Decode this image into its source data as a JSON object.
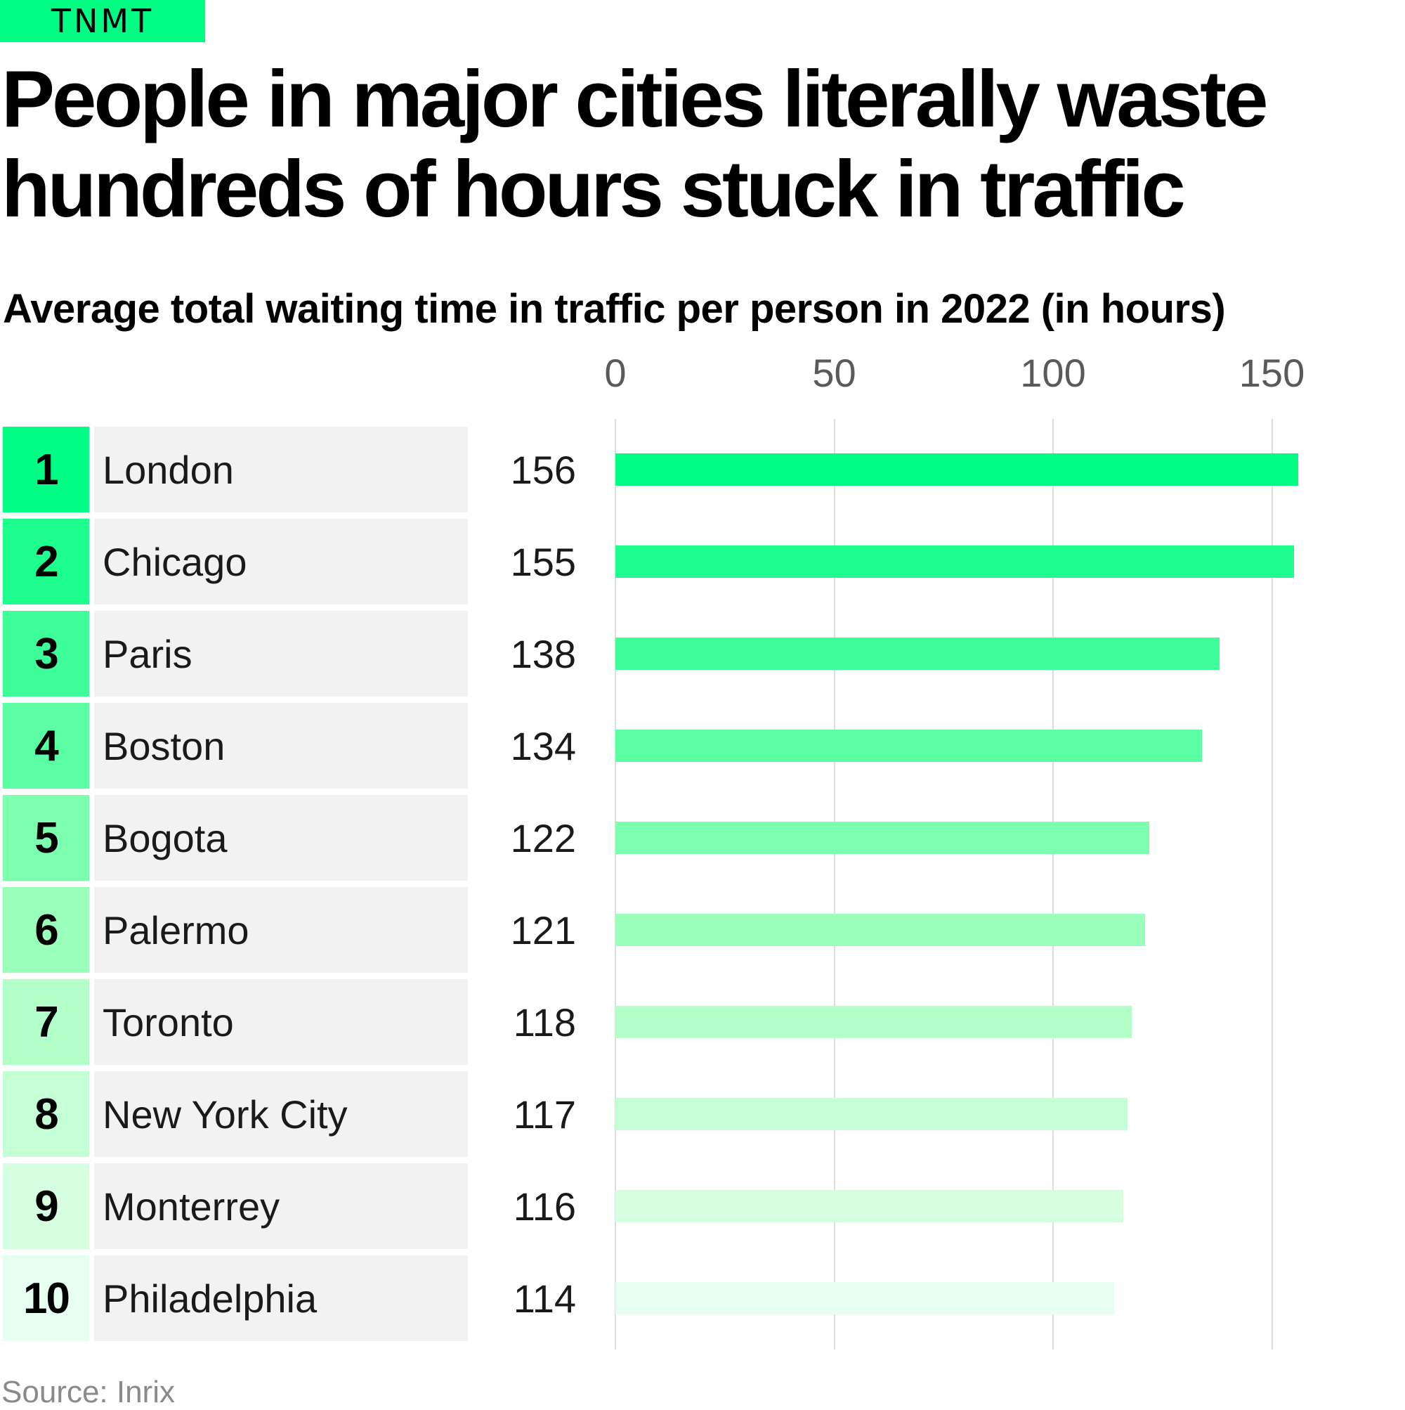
{
  "brand": {
    "logo_text": "TNMT",
    "accent_color": "#00fe84"
  },
  "header": {
    "title": "People in major cities literally waste hundreds of hours stuck in traffic",
    "subtitle": "Average total waiting time in traffic per person in 2022 (in hours)"
  },
  "footer": {
    "source": "Source: Inrix"
  },
  "chart_data": {
    "type": "bar",
    "orientation": "horizontal",
    "title": "Average total waiting time in traffic per person in 2022 (in hours)",
    "xlim": [
      0,
      160
    ],
    "xticks": [
      0,
      50,
      100,
      150
    ],
    "xtick_labels": [
      "0",
      "50",
      "100",
      "150"
    ],
    "grid": true,
    "rows": [
      {
        "rank": "1",
        "city": "London",
        "value": 156,
        "color": "#00fe84"
      },
      {
        "rank": "2",
        "city": "Chicago",
        "value": 155,
        "color": "#1dfe8e"
      },
      {
        "rank": "3",
        "city": "Paris",
        "value": 138,
        "color": "#3dfe98"
      },
      {
        "rank": "4",
        "city": "Boston",
        "value": 134,
        "color": "#5cfea3"
      },
      {
        "rank": "5",
        "city": "Bogota",
        "value": 122,
        "color": "#7cffae"
      },
      {
        "rank": "6",
        "city": "Palermo",
        "value": 121,
        "color": "#9affbb"
      },
      {
        "rank": "7",
        "city": "Toronto",
        "value": 118,
        "color": "#b2ffc9"
      },
      {
        "rank": "8",
        "city": "New York City",
        "value": 117,
        "color": "#c5ffd6"
      },
      {
        "rank": "9",
        "city": "Monterrey",
        "value": 116,
        "color": "#d6ffe2"
      },
      {
        "rank": "10",
        "city": "Philadelphia",
        "value": 114,
        "color": "#e6fff0"
      }
    ]
  }
}
